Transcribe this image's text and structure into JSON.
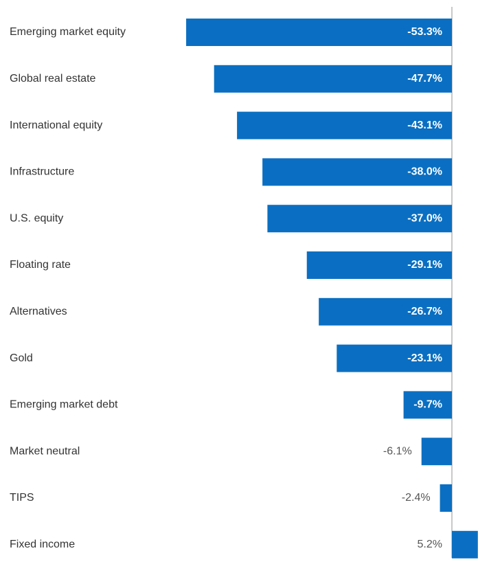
{
  "chart_data": {
    "type": "bar",
    "orientation": "horizontal",
    "color": "#0a6fc2",
    "categories": [
      "Emerging market equity",
      "Global real estate",
      "International equity",
      "Infrastructure",
      "U.S. equity",
      "Floating rate",
      "Alternatives",
      "Gold",
      "Emerging market debt",
      "Market neutral",
      "TIPS",
      "Fixed income"
    ],
    "values": [
      -53.3,
      -47.7,
      -43.1,
      -38.0,
      -37.0,
      -29.1,
      -26.7,
      -23.1,
      -9.7,
      -6.1,
      -2.4,
      5.2
    ],
    "value_labels": [
      "-53.3%",
      "-47.7%",
      "-43.1%",
      "-38.0%",
      "-37.0%",
      "-29.1%",
      "-26.7%",
      "-23.1%",
      "-9.7%",
      "-6.1%",
      "-2.4%",
      "5.2%"
    ]
  }
}
